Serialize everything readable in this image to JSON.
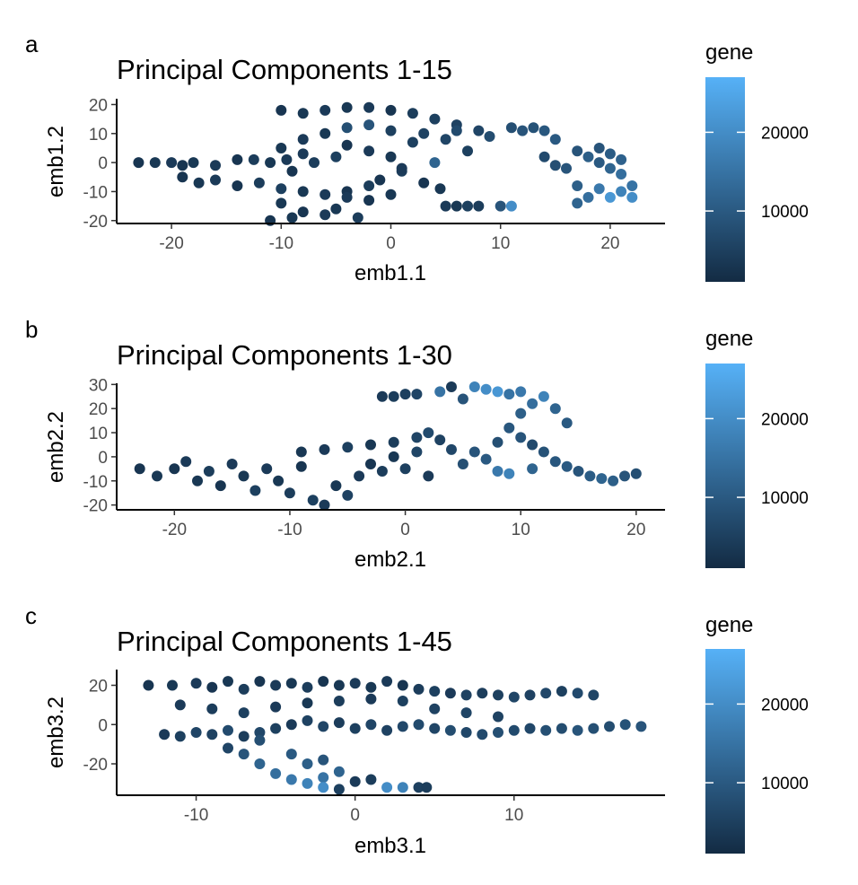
{
  "colorbar": {
    "title": "gene",
    "low_color": "#132B43",
    "high_color": "#56B1F7",
    "range": [
      1000,
      27000
    ],
    "ticks": [
      "10000",
      "20000"
    ],
    "tick_values": [
      10000,
      20000
    ]
  },
  "chart_data": [
    {
      "type": "scatter",
      "panel_label": "a",
      "title": "Principal Components 1-15",
      "xlabel": "emb1.1",
      "ylabel": "emb1.2",
      "xlim": [
        -25,
        25
      ],
      "ylim": [
        -21,
        22
      ],
      "xticks": [
        -20,
        -10,
        0,
        10,
        20
      ],
      "yticks": [
        -20,
        -10,
        0,
        10,
        20
      ],
      "xtick_labels": [
        "-20",
        "-10",
        "0",
        "10",
        "20"
      ],
      "ytick_labels": [
        "-20",
        "-10",
        "0",
        "10",
        "20"
      ],
      "color_variable": "gene",
      "grid": false,
      "legend": "right",
      "points": [
        [
          -23,
          0,
          3000
        ],
        [
          -21.5,
          0,
          3500
        ],
        [
          -20,
          0,
          4000
        ],
        [
          -19,
          -1,
          3000
        ],
        [
          -18,
          0,
          3500
        ],
        [
          -16,
          -1,
          4000
        ],
        [
          -14,
          1,
          3000
        ],
        [
          -12.5,
          1,
          4500
        ],
        [
          -11,
          0,
          3500
        ],
        [
          -9.5,
          1,
          4000
        ],
        [
          -19,
          -5,
          3000
        ],
        [
          -17.5,
          -7,
          3500
        ],
        [
          -16,
          -6,
          4000
        ],
        [
          -14,
          -8,
          3000
        ],
        [
          -12,
          -7,
          4500
        ],
        [
          -10,
          -9,
          5000
        ],
        [
          -8,
          -10,
          3500
        ],
        [
          -6,
          -11,
          4000
        ],
        [
          -4,
          -10,
          3000
        ],
        [
          -2,
          -8,
          4500
        ],
        [
          -10,
          -14,
          3500
        ],
        [
          -8,
          -17,
          3000
        ],
        [
          -6,
          -18,
          4000
        ],
        [
          -5,
          -16,
          3500
        ],
        [
          -3,
          -19,
          4500
        ],
        [
          -11,
          -20,
          3000
        ],
        [
          -9,
          -19,
          3500
        ],
        [
          -4,
          -12,
          4000
        ],
        [
          -2,
          -13,
          3000
        ],
        [
          0,
          -11,
          3500
        ],
        [
          -10,
          18,
          3000
        ],
        [
          -8,
          17,
          3500
        ],
        [
          -6,
          18,
          4000
        ],
        [
          -4,
          19,
          3500
        ],
        [
          -2,
          19,
          4000
        ],
        [
          0,
          18,
          3000
        ],
        [
          2,
          17,
          4500
        ],
        [
          4,
          15,
          5000
        ],
        [
          6,
          13,
          5500
        ],
        [
          8,
          11,
          6000
        ],
        [
          -8,
          8,
          4000
        ],
        [
          -6,
          10,
          3500
        ],
        [
          -4,
          12,
          8000
        ],
        [
          -2,
          13,
          9000
        ],
        [
          0,
          11,
          5000
        ],
        [
          -10,
          5,
          3500
        ],
        [
          -8,
          3,
          4000
        ],
        [
          -9,
          -3,
          3000
        ],
        [
          -7,
          0,
          4500
        ],
        [
          -5,
          2,
          5000
        ],
        [
          -4,
          6,
          3000
        ],
        [
          -2,
          4,
          4000
        ],
        [
          0,
          2,
          3500
        ],
        [
          1,
          -3,
          4500
        ],
        [
          -1,
          -6,
          3000
        ],
        [
          2,
          7,
          5000
        ],
        [
          3,
          10,
          5500
        ],
        [
          5,
          8,
          6000
        ],
        [
          4,
          0,
          12000
        ],
        [
          6,
          11,
          7000
        ],
        [
          9,
          9,
          7500
        ],
        [
          11,
          12,
          8000
        ],
        [
          12,
          11,
          9000
        ],
        [
          13,
          12,
          8500
        ],
        [
          14,
          11,
          9500
        ],
        [
          15,
          8,
          10000
        ],
        [
          17,
          4,
          9000
        ],
        [
          18,
          2,
          11000
        ],
        [
          19,
          0,
          10000
        ],
        [
          20,
          -2,
          12000
        ],
        [
          21,
          -4,
          14000
        ],
        [
          22,
          -8,
          15000
        ],
        [
          21,
          -10,
          18000
        ],
        [
          20,
          -12,
          22000
        ],
        [
          19,
          -9,
          16000
        ],
        [
          18,
          -12,
          14000
        ],
        [
          17,
          -8,
          11000
        ],
        [
          16,
          -2,
          9000
        ],
        [
          15,
          -1,
          8000
        ],
        [
          14,
          2,
          7000
        ],
        [
          19,
          5,
          9000
        ],
        [
          20,
          3,
          10500
        ],
        [
          21,
          1,
          11500
        ],
        [
          17,
          -14,
          12000
        ],
        [
          22,
          -12,
          20000
        ],
        [
          5,
          -15,
          4000
        ],
        [
          6,
          -15,
          3500
        ],
        [
          7,
          -15,
          5000
        ],
        [
          8,
          -15,
          4500
        ],
        [
          10,
          -15,
          9000
        ],
        [
          11,
          -15,
          20000
        ],
        [
          4.5,
          -9,
          3500
        ],
        [
          3,
          -7,
          3000
        ],
        [
          1,
          -2,
          4000
        ],
        [
          7,
          4,
          5000
        ]
      ]
    },
    {
      "type": "scatter",
      "panel_label": "b",
      "title": "Principal Components 1-30",
      "xlabel": "emb2.1",
      "ylabel": "emb2.2",
      "xlim": [
        -25,
        22.5
      ],
      "ylim": [
        -22,
        30.5
      ],
      "xticks": [
        -20,
        -10,
        0,
        10,
        20
      ],
      "yticks": [
        -20,
        -10,
        0,
        10,
        20,
        30
      ],
      "xtick_labels": [
        "-20",
        "-10",
        "0",
        "10",
        "20"
      ],
      "ytick_labels": [
        "-20",
        "-10",
        "0",
        "10",
        "20",
        "30"
      ],
      "color_variable": "gene",
      "grid": false,
      "legend": "right",
      "points": [
        [
          -23,
          -5,
          3000
        ],
        [
          -21.5,
          -8,
          3500
        ],
        [
          -20,
          -5,
          3000
        ],
        [
          -19,
          -2,
          4000
        ],
        [
          -18,
          -10,
          3500
        ],
        [
          -17,
          -6,
          4500
        ],
        [
          -16,
          -12,
          3000
        ],
        [
          -15,
          -3,
          4000
        ],
        [
          -14,
          -8,
          3500
        ],
        [
          -13,
          -14,
          5000
        ],
        [
          -12,
          -5,
          4000
        ],
        [
          -11,
          -10,
          3500
        ],
        [
          -10,
          -15,
          4500
        ],
        [
          -9,
          -4,
          3000
        ],
        [
          -8,
          -18,
          5000
        ],
        [
          -7,
          -20,
          4000
        ],
        [
          -6,
          -12,
          3500
        ],
        [
          -5,
          -16,
          5500
        ],
        [
          -4,
          -8,
          4000
        ],
        [
          -3,
          -3,
          3000
        ],
        [
          -2,
          -6,
          4500
        ],
        [
          -1,
          0,
          3500
        ],
        [
          0,
          -5,
          5000
        ],
        [
          1,
          2,
          6000
        ],
        [
          2,
          -8,
          4000
        ],
        [
          -9,
          2,
          3500
        ],
        [
          -7,
          3,
          4000
        ],
        [
          -5,
          4,
          5000
        ],
        [
          -3,
          5,
          3500
        ],
        [
          -1,
          6,
          4500
        ],
        [
          1,
          8,
          6000
        ],
        [
          2,
          10,
          7000
        ],
        [
          3,
          7,
          5500
        ],
        [
          4,
          3,
          6500
        ],
        [
          5,
          -3,
          8000
        ],
        [
          6,
          2,
          9000
        ],
        [
          7,
          -1,
          10000
        ],
        [
          8,
          6,
          8000
        ],
        [
          9,
          12,
          9500
        ],
        [
          10,
          18,
          11000
        ],
        [
          11,
          22,
          14000
        ],
        [
          12,
          25,
          18000
        ],
        [
          13,
          20,
          12000
        ],
        [
          14,
          14,
          10000
        ],
        [
          10,
          8,
          9000
        ],
        [
          11,
          5,
          7000
        ],
        [
          12,
          2,
          8500
        ],
        [
          13,
          -2,
          9500
        ],
        [
          14,
          -4,
          10000
        ],
        [
          15,
          -6,
          9000
        ],
        [
          16,
          -8,
          10500
        ],
        [
          17,
          -9,
          12000
        ],
        [
          18,
          -10,
          11000
        ],
        [
          19,
          -8,
          9000
        ],
        [
          20,
          -7,
          8000
        ],
        [
          6,
          29,
          18000
        ],
        [
          7,
          28,
          20000
        ],
        [
          8,
          27,
          22000
        ],
        [
          9,
          26,
          15000
        ],
        [
          5,
          24,
          9000
        ],
        [
          -2,
          25,
          4000
        ],
        [
          -1,
          25,
          4500
        ],
        [
          0,
          26,
          5000
        ],
        [
          1,
          26,
          6000
        ],
        [
          3,
          27,
          15000
        ],
        [
          4,
          29,
          4000
        ],
        [
          10,
          27,
          16000
        ],
        [
          9,
          -7,
          18000
        ],
        [
          8,
          -6,
          16000
        ],
        [
          11,
          -5,
          12000
        ]
      ]
    },
    {
      "type": "scatter",
      "panel_label": "c",
      "title": "Principal Components 1-45",
      "xlabel": "emb3.1",
      "ylabel": "emb3.2",
      "xlim": [
        -15,
        19.5
      ],
      "ylim": [
        -36,
        28
      ],
      "xticks": [
        -10,
        0,
        10
      ],
      "yticks": [
        -20,
        0,
        20
      ],
      "xtick_labels": [
        "-10",
        "0",
        "10"
      ],
      "ytick_labels": [
        "-20",
        "0",
        "20"
      ],
      "color_variable": "gene",
      "grid": false,
      "legend": "right",
      "points": [
        [
          -13,
          20,
          3000
        ],
        [
          -11.5,
          20,
          3500
        ],
        [
          -10,
          21,
          4000
        ],
        [
          -9,
          19,
          3000
        ],
        [
          -8,
          22,
          3500
        ],
        [
          -7,
          18,
          4500
        ],
        [
          -6,
          22,
          3000
        ],
        [
          -5,
          20,
          4000
        ],
        [
          -4,
          21,
          3500
        ],
        [
          -3,
          19,
          4500
        ],
        [
          -2,
          22,
          3000
        ],
        [
          -1,
          20,
          3500
        ],
        [
          0,
          21,
          4000
        ],
        [
          1,
          19,
          3500
        ],
        [
          2,
          22,
          4000
        ],
        [
          3,
          20,
          3000
        ],
        [
          4,
          18,
          4500
        ],
        [
          5,
          17,
          5000
        ],
        [
          6,
          16,
          4000
        ],
        [
          7,
          15,
          5500
        ],
        [
          8,
          16,
          4500
        ],
        [
          9,
          15,
          5000
        ],
        [
          10,
          14,
          6000
        ],
        [
          11,
          15,
          5500
        ],
        [
          12,
          16,
          6500
        ],
        [
          13,
          17,
          5000
        ],
        [
          14,
          16,
          7000
        ],
        [
          15,
          15,
          6000
        ],
        [
          -12,
          -5,
          4000
        ],
        [
          -11,
          -6,
          5000
        ],
        [
          -10,
          -4,
          6000
        ],
        [
          -9,
          -5,
          5500
        ],
        [
          -8,
          -3,
          7000
        ],
        [
          -7,
          -6,
          4500
        ],
        [
          -6,
          -4,
          6500
        ],
        [
          -5,
          -2,
          5000
        ],
        [
          -4,
          0,
          4000
        ],
        [
          -3,
          2,
          5500
        ],
        [
          -2,
          -1,
          6000
        ],
        [
          -1,
          1,
          4500
        ],
        [
          0,
          -2,
          5000
        ],
        [
          1,
          0,
          6000
        ],
        [
          2,
          -3,
          5500
        ],
        [
          3,
          -1,
          6500
        ],
        [
          4,
          0,
          7000
        ],
        [
          5,
          -2,
          6000
        ],
        [
          6,
          -3,
          7500
        ],
        [
          7,
          -4,
          6500
        ],
        [
          8,
          -5,
          7000
        ],
        [
          9,
          -4,
          8000
        ],
        [
          10,
          -3,
          7000
        ],
        [
          11,
          -2,
          6500
        ],
        [
          12,
          -3,
          8000
        ],
        [
          13,
          -2,
          7500
        ],
        [
          14,
          -3,
          9000
        ],
        [
          15,
          -2,
          8000
        ],
        [
          16,
          -1,
          7500
        ],
        [
          17,
          0,
          8500
        ],
        [
          18,
          -1,
          9000
        ],
        [
          -11,
          10,
          4000
        ],
        [
          -9,
          8,
          4500
        ],
        [
          -7,
          6,
          5000
        ],
        [
          -5,
          9,
          4000
        ],
        [
          -3,
          11,
          3500
        ],
        [
          -1,
          12,
          4500
        ],
        [
          1,
          13,
          4000
        ],
        [
          3,
          12,
          5000
        ],
        [
          5,
          8,
          5500
        ],
        [
          7,
          6,
          6000
        ],
        [
          9,
          4,
          5500
        ],
        [
          -7,
          -15,
          9000
        ],
        [
          -6,
          -20,
          12000
        ],
        [
          -5,
          -25,
          14000
        ],
        [
          -4,
          -28,
          16000
        ],
        [
          -3,
          -30,
          18000
        ],
        [
          -2,
          -27,
          15000
        ],
        [
          -1,
          -24,
          12000
        ],
        [
          -4,
          -15,
          10000
        ],
        [
          -3,
          -20,
          11000
        ],
        [
          -2,
          -18,
          9000
        ],
        [
          -1,
          -33,
          5000
        ],
        [
          0,
          -29,
          4000
        ],
        [
          1,
          -28,
          4500
        ],
        [
          2,
          -32,
          20000
        ],
        [
          3,
          -32,
          18000
        ],
        [
          4,
          -32,
          5000
        ],
        [
          4.5,
          -32,
          4500
        ],
        [
          -2,
          -32,
          20000
        ],
        [
          -6,
          -8,
          8000
        ],
        [
          -8,
          -12,
          6000
        ]
      ]
    }
  ]
}
